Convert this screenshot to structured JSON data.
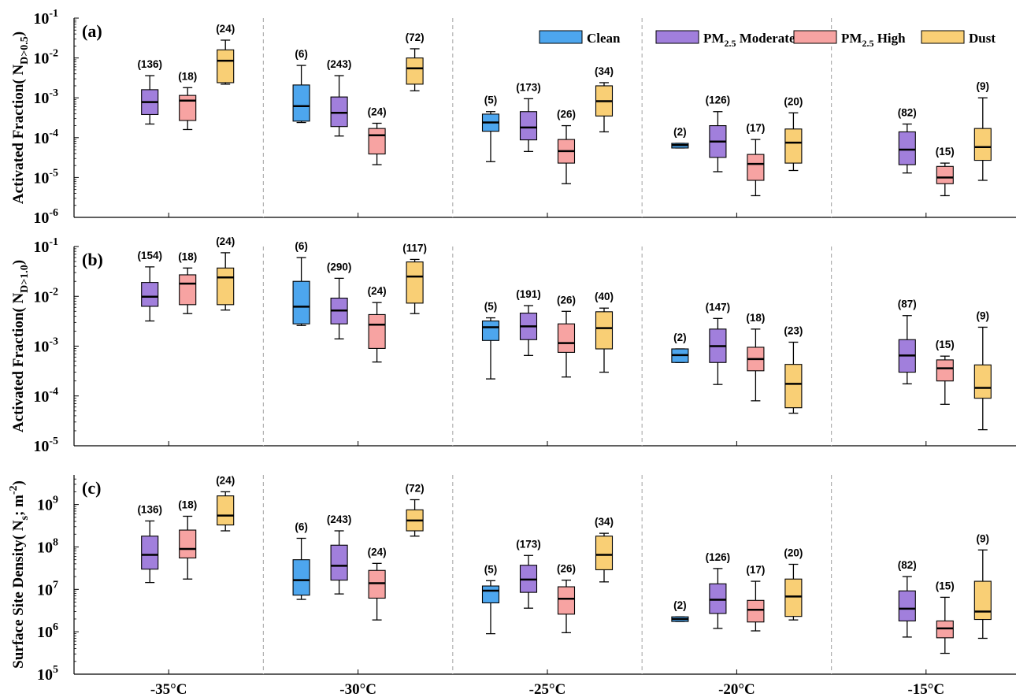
{
  "colors": {
    "Clean": "#4da6ee",
    "PM2.5 Moderate": "#a17fdc",
    "PM2.5 High": "#f7a3a2",
    "Dust": "#f9cf75"
  },
  "legend": {
    "items": [
      {
        "key": "Clean",
        "main": "Clean",
        "sub": "",
        "tail": ""
      },
      {
        "key": "PM2.5 Moderate",
        "main": "PM",
        "sub": "2.5",
        "tail": " Moderate"
      },
      {
        "key": "PM2.5 High",
        "main": "PM",
        "sub": "2.5",
        "tail": " High"
      },
      {
        "key": "Dust",
        "main": "Dust",
        "sub": "",
        "tail": ""
      }
    ]
  },
  "chart_data": [
    {
      "type": "box",
      "panel_label": "(a)",
      "ylabel": {
        "main": "Activated Fraction( N",
        "sub": "D>0.5",
        "tail": ")"
      },
      "yscale": "log",
      "ylim": [
        1e-06,
        0.1
      ],
      "ytick_exponents": [
        -6,
        -5,
        -4,
        -3,
        -2,
        -1
      ],
      "categories": [
        "-35°C",
        "-30°C",
        "-25°C",
        "-20°C",
        "-15°C"
      ],
      "series": [
        {
          "name": "Clean",
          "boxes": [
            null,
            {
              "whislo": 0.00024,
              "q1": 0.00026,
              "med": 0.00062,
              "q3": 0.0021,
              "whishi": 0.0065,
              "n": "(6)"
            },
            {
              "whislo": 2.5e-05,
              "q1": 0.000145,
              "med": 0.00024,
              "q3": 0.00039,
              "whishi": 0.00045,
              "n": "(5)"
            },
            {
              "whislo": 5.5e-05,
              "q1": 5.5e-05,
              "med": 6.5e-05,
              "q3": 7.2e-05,
              "whishi": 7.2e-05,
              "n": "(2)"
            },
            null
          ]
        },
        {
          "name": "PM2.5 Moderate",
          "boxes": [
            {
              "whislo": 0.00022,
              "q1": 0.00038,
              "med": 0.00078,
              "q3": 0.0016,
              "whishi": 0.0036,
              "n": "(136)"
            },
            {
              "whislo": 0.00011,
              "q1": 0.00019,
              "med": 0.00042,
              "q3": 0.00105,
              "whishi": 0.0036,
              "n": "(243)"
            },
            {
              "whislo": 4.5e-05,
              "q1": 8.8e-05,
              "med": 0.00018,
              "q3": 0.00045,
              "whishi": 0.00095,
              "n": "(173)"
            },
            {
              "whislo": 1.4e-05,
              "q1": 3.2e-05,
              "med": 8e-05,
              "q3": 0.0002,
              "whishi": 0.00045,
              "n": "(126)"
            },
            {
              "whislo": 1.3e-05,
              "q1": 2.1e-05,
              "med": 5e-05,
              "q3": 0.00014,
              "whishi": 0.00022,
              "n": "(82)"
            }
          ]
        },
        {
          "name": "PM2.5 High",
          "boxes": [
            {
              "whislo": 0.00016,
              "q1": 0.00027,
              "med": 0.00085,
              "q3": 0.00115,
              "whishi": 0.0018,
              "n": "(18)"
            },
            {
              "whislo": 2.1e-05,
              "q1": 3.9e-05,
              "med": 0.000115,
              "q3": 0.00017,
              "whishi": 0.00023,
              "n": "(24)"
            },
            {
              "whislo": 7e-06,
              "q1": 2.3e-05,
              "med": 4.6e-05,
              "q3": 9e-05,
              "whishi": 0.0002,
              "n": "(26)"
            },
            {
              "whislo": 3.5e-06,
              "q1": 8.5e-06,
              "med": 2.2e-05,
              "q3": 3.8e-05,
              "whishi": 9e-05,
              "n": "(17)"
            },
            {
              "whislo": 3.5e-06,
              "q1": 7e-06,
              "med": 1e-05,
              "q3": 1.9e-05,
              "whishi": 2.3e-05,
              "n": "(15)"
            }
          ]
        },
        {
          "name": "Dust",
          "boxes": [
            {
              "whislo": 0.0022,
              "q1": 0.0024,
              "med": 0.0085,
              "q3": 0.016,
              "whishi": 0.028,
              "n": "(24)"
            },
            {
              "whislo": 0.0015,
              "q1": 0.0022,
              "med": 0.0055,
              "q3": 0.01,
              "whishi": 0.017,
              "n": "(72)"
            },
            {
              "whislo": 0.00014,
              "q1": 0.00035,
              "med": 0.00082,
              "q3": 0.002,
              "whishi": 0.0024,
              "n": "(34)"
            },
            {
              "whislo": 1.5e-05,
              "q1": 2.3e-05,
              "med": 7.5e-05,
              "q3": 0.000165,
              "whishi": 0.00042,
              "n": "(20)"
            },
            {
              "whislo": 8.5e-06,
              "q1": 2.7e-05,
              "med": 5.8e-05,
              "q3": 0.00017,
              "whishi": 0.001,
              "n": "(9)"
            }
          ]
        }
      ]
    },
    {
      "type": "box",
      "panel_label": "(b)",
      "ylabel": {
        "main": "Activated Fraction( N",
        "sub": "D>1.0",
        "tail": ")"
      },
      "yscale": "log",
      "ylim": [
        1e-05,
        0.1
      ],
      "ytick_exponents": [
        -5,
        -4,
        -3,
        -2,
        -1
      ],
      "categories": [
        "-35°C",
        "-30°C",
        "-25°C",
        "-20°C",
        "-15°C"
      ],
      "series": [
        {
          "name": "Clean",
          "boxes": [
            null,
            {
              "whislo": 0.0026,
              "q1": 0.0028,
              "med": 0.0062,
              "q3": 0.02,
              "whishi": 0.06,
              "n": "(6)"
            },
            {
              "whislo": 0.00022,
              "q1": 0.0013,
              "med": 0.0024,
              "q3": 0.0032,
              "whishi": 0.0037,
              "n": "(5)"
            },
            {
              "whislo": 0.00047,
              "q1": 0.00047,
              "med": 0.00066,
              "q3": 0.00088,
              "whishi": 0.00088,
              "n": "(2)"
            },
            null
          ]
        },
        {
          "name": "PM2.5 Moderate",
          "boxes": [
            {
              "whislo": 0.0032,
              "q1": 0.0063,
              "med": 0.0098,
              "q3": 0.019,
              "whishi": 0.039,
              "n": "(154)"
            },
            {
              "whislo": 0.0014,
              "q1": 0.0028,
              "med": 0.0052,
              "q3": 0.0092,
              "whishi": 0.023,
              "n": "(290)"
            },
            {
              "whislo": 0.00065,
              "q1": 0.00135,
              "med": 0.0025,
              "q3": 0.0046,
              "whishi": 0.0065,
              "n": "(191)"
            },
            {
              "whislo": 0.00017,
              "q1": 0.00047,
              "med": 0.001,
              "q3": 0.0022,
              "whishi": 0.0036,
              "n": "(147)"
            },
            {
              "whislo": 0.000175,
              "q1": 0.0003,
              "med": 0.00065,
              "q3": 0.00135,
              "whishi": 0.0041,
              "n": "(87)"
            }
          ]
        },
        {
          "name": "PM2.5 High",
          "boxes": [
            {
              "whislo": 0.0045,
              "q1": 0.0068,
              "med": 0.018,
              "q3": 0.027,
              "whishi": 0.037,
              "n": "(18)"
            },
            {
              "whislo": 0.00048,
              "q1": 0.0009,
              "med": 0.0027,
              "q3": 0.0043,
              "whishi": 0.0075,
              "n": "(24)"
            },
            {
              "whislo": 0.00024,
              "q1": 0.00075,
              "med": 0.00115,
              "q3": 0.0028,
              "whishi": 0.005,
              "n": "(26)"
            },
            {
              "whislo": 8e-05,
              "q1": 0.00032,
              "med": 0.00055,
              "q3": 0.00095,
              "whishi": 0.0022,
              "n": "(18)"
            },
            {
              "whislo": 6.8e-05,
              "q1": 0.0002,
              "med": 0.00036,
              "q3": 0.00053,
              "whishi": 0.00063,
              "n": "(15)"
            }
          ]
        },
        {
          "name": "Dust",
          "boxes": [
            {
              "whislo": 0.0053,
              "q1": 0.0068,
              "med": 0.024,
              "q3": 0.037,
              "whishi": 0.075,
              "n": "(24)"
            },
            {
              "whislo": 0.0045,
              "q1": 0.0073,
              "med": 0.025,
              "q3": 0.049,
              "whishi": 0.055,
              "n": "(117)"
            },
            {
              "whislo": 0.0003,
              "q1": 0.00088,
              "med": 0.0023,
              "q3": 0.0049,
              "whishi": 0.0058,
              "n": "(40)"
            },
            {
              "whislo": 4.5e-05,
              "q1": 5.8e-05,
              "med": 0.000175,
              "q3": 0.00043,
              "whishi": 0.0012,
              "n": "(23)"
            },
            {
              "whislo": 2.1e-05,
              "q1": 9e-05,
              "med": 0.000145,
              "q3": 0.00042,
              "whishi": 0.0024,
              "n": "(9)"
            }
          ]
        }
      ]
    },
    {
      "type": "box",
      "panel_label": "(c)",
      "ylabel": {
        "main": "Surface Site Density( N",
        "sub": "s",
        "tail": "; m",
        "sup": "-2",
        "end": ")"
      },
      "yscale": "log",
      "ylim": [
        100000.0,
        5000000000.0
      ],
      "ytick_exponents": [
        5,
        6,
        7,
        8,
        9
      ],
      "categories": [
        "-35°C",
        "-30°C",
        "-25°C",
        "-20°C",
        "-15°C"
      ],
      "series": [
        {
          "name": "Clean",
          "boxes": [
            null,
            {
              "whislo": 5800000.0,
              "q1": 7300000.0,
              "med": 16500000.0,
              "q3": 50000000.0,
              "whishi": 160000000.0,
              "n": "(6)"
            },
            {
              "whislo": 900000.0,
              "q1": 4800000.0,
              "med": 9300000.0,
              "q3": 12000000.0,
              "whishi": 16000000.0,
              "n": "(5)"
            },
            {
              "whislo": 1750000.0,
              "q1": 1750000.0,
              "med": 2000000.0,
              "q3": 2250000.0,
              "whishi": 2250000.0,
              "n": "(2)"
            },
            null
          ]
        },
        {
          "name": "PM2.5 Moderate",
          "boxes": [
            {
              "whislo": 14500000.0,
              "q1": 30000000.0,
              "med": 65000000.0,
              "q3": 180000000.0,
              "whishi": 410000000.0,
              "n": "(136)"
            },
            {
              "whislo": 7800000.0,
              "q1": 16500000.0,
              "med": 36000000.0,
              "q3": 110000000.0,
              "whishi": 240000000.0,
              "n": "(243)"
            },
            {
              "whislo": 3600000.0,
              "q1": 8500000.0,
              "med": 17000000.0,
              "q3": 37000000.0,
              "whishi": 63000000.0,
              "n": "(173)"
            },
            {
              "whislo": 1200000.0,
              "q1": 2700000.0,
              "med": 5700000.0,
              "q3": 13500000.0,
              "whishi": 31000000.0,
              "n": "(126)"
            },
            {
              "whislo": 750000.0,
              "q1": 1800000.0,
              "med": 3500000.0,
              "q3": 9200000.0,
              "whishi": 20000000.0,
              "n": "(82)"
            }
          ]
        },
        {
          "name": "PM2.5 High",
          "boxes": [
            {
              "whislo": 17500000.0,
              "q1": 55000000.0,
              "med": 90000000.0,
              "q3": 250000000.0,
              "whishi": 530000000.0,
              "n": "(18)"
            },
            {
              "whislo": 1900000.0,
              "q1": 6200000.0,
              "med": 14000000.0,
              "q3": 28000000.0,
              "whishi": 41000000.0,
              "n": "(24)"
            },
            {
              "whislo": 950000.0,
              "q1": 2600000.0,
              "med": 6000000.0,
              "q3": 11500000.0,
              "whishi": 16500000.0,
              "n": "(26)"
            },
            {
              "whislo": 1050000.0,
              "q1": 1700000.0,
              "med": 3300000.0,
              "q3": 5500000.0,
              "whishi": 15500000.0,
              "n": "(17)"
            },
            {
              "whislo": 310000.0,
              "q1": 720000.0,
              "med": 1200000.0,
              "q3": 1800000.0,
              "whishi": 6500000.0,
              "n": "(15)"
            }
          ]
        },
        {
          "name": "Dust",
          "boxes": [
            {
              "whislo": 240000000.0,
              "q1": 330000000.0,
              "med": 550000000.0,
              "q3": 1600000000.0,
              "whishi": 2000000000.0,
              "n": "(24)"
            },
            {
              "whislo": 180000000.0,
              "q1": 240000000.0,
              "med": 420000000.0,
              "q3": 750000000.0,
              "whishi": 1300000000.0,
              "n": "(72)"
            },
            {
              "whislo": 15000000.0,
              "q1": 29000000.0,
              "med": 65000000.0,
              "q3": 180000000.0,
              "whishi": 210000000.0,
              "n": "(34)"
            },
            {
              "whislo": 1900000.0,
              "q1": 2300000.0,
              "med": 6800000.0,
              "q3": 17500000.0,
              "whishi": 39000000.0,
              "n": "(20)"
            },
            {
              "whislo": 700000.0,
              "q1": 1950000.0,
              "med": 3000000.0,
              "q3": 15500000.0,
              "whishi": 85000000.0,
              "n": "(9)"
            }
          ]
        }
      ]
    }
  ]
}
